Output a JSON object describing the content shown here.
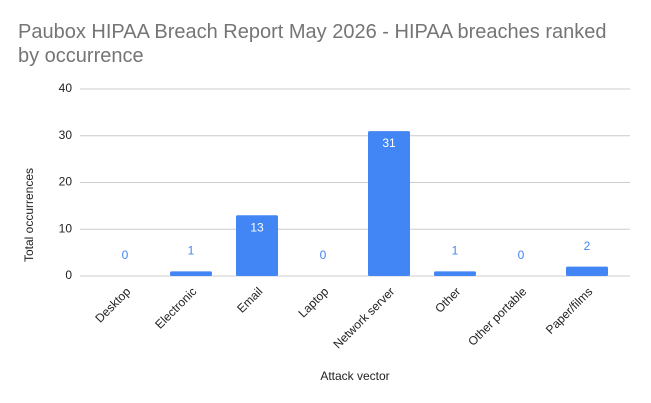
{
  "chart_data": {
    "type": "bar",
    "title": "Paubox HIPAA Breach Report May 2026 - HIPAA breaches ranked by occurrence",
    "x_label": "Attack vector",
    "y_label": "Total occurrences",
    "categories": [
      "Desktop",
      "Electronic",
      "Email",
      "Laptop",
      "Network server",
      "Other",
      "Other portable",
      "Paper/films"
    ],
    "values": [
      0,
      1,
      13,
      0,
      31,
      1,
      0,
      2
    ],
    "color": "#4285f4",
    "ylim": [
      0,
      40
    ],
    "yticks": [
      0,
      10,
      20,
      30,
      40
    ],
    "grid": true
  }
}
